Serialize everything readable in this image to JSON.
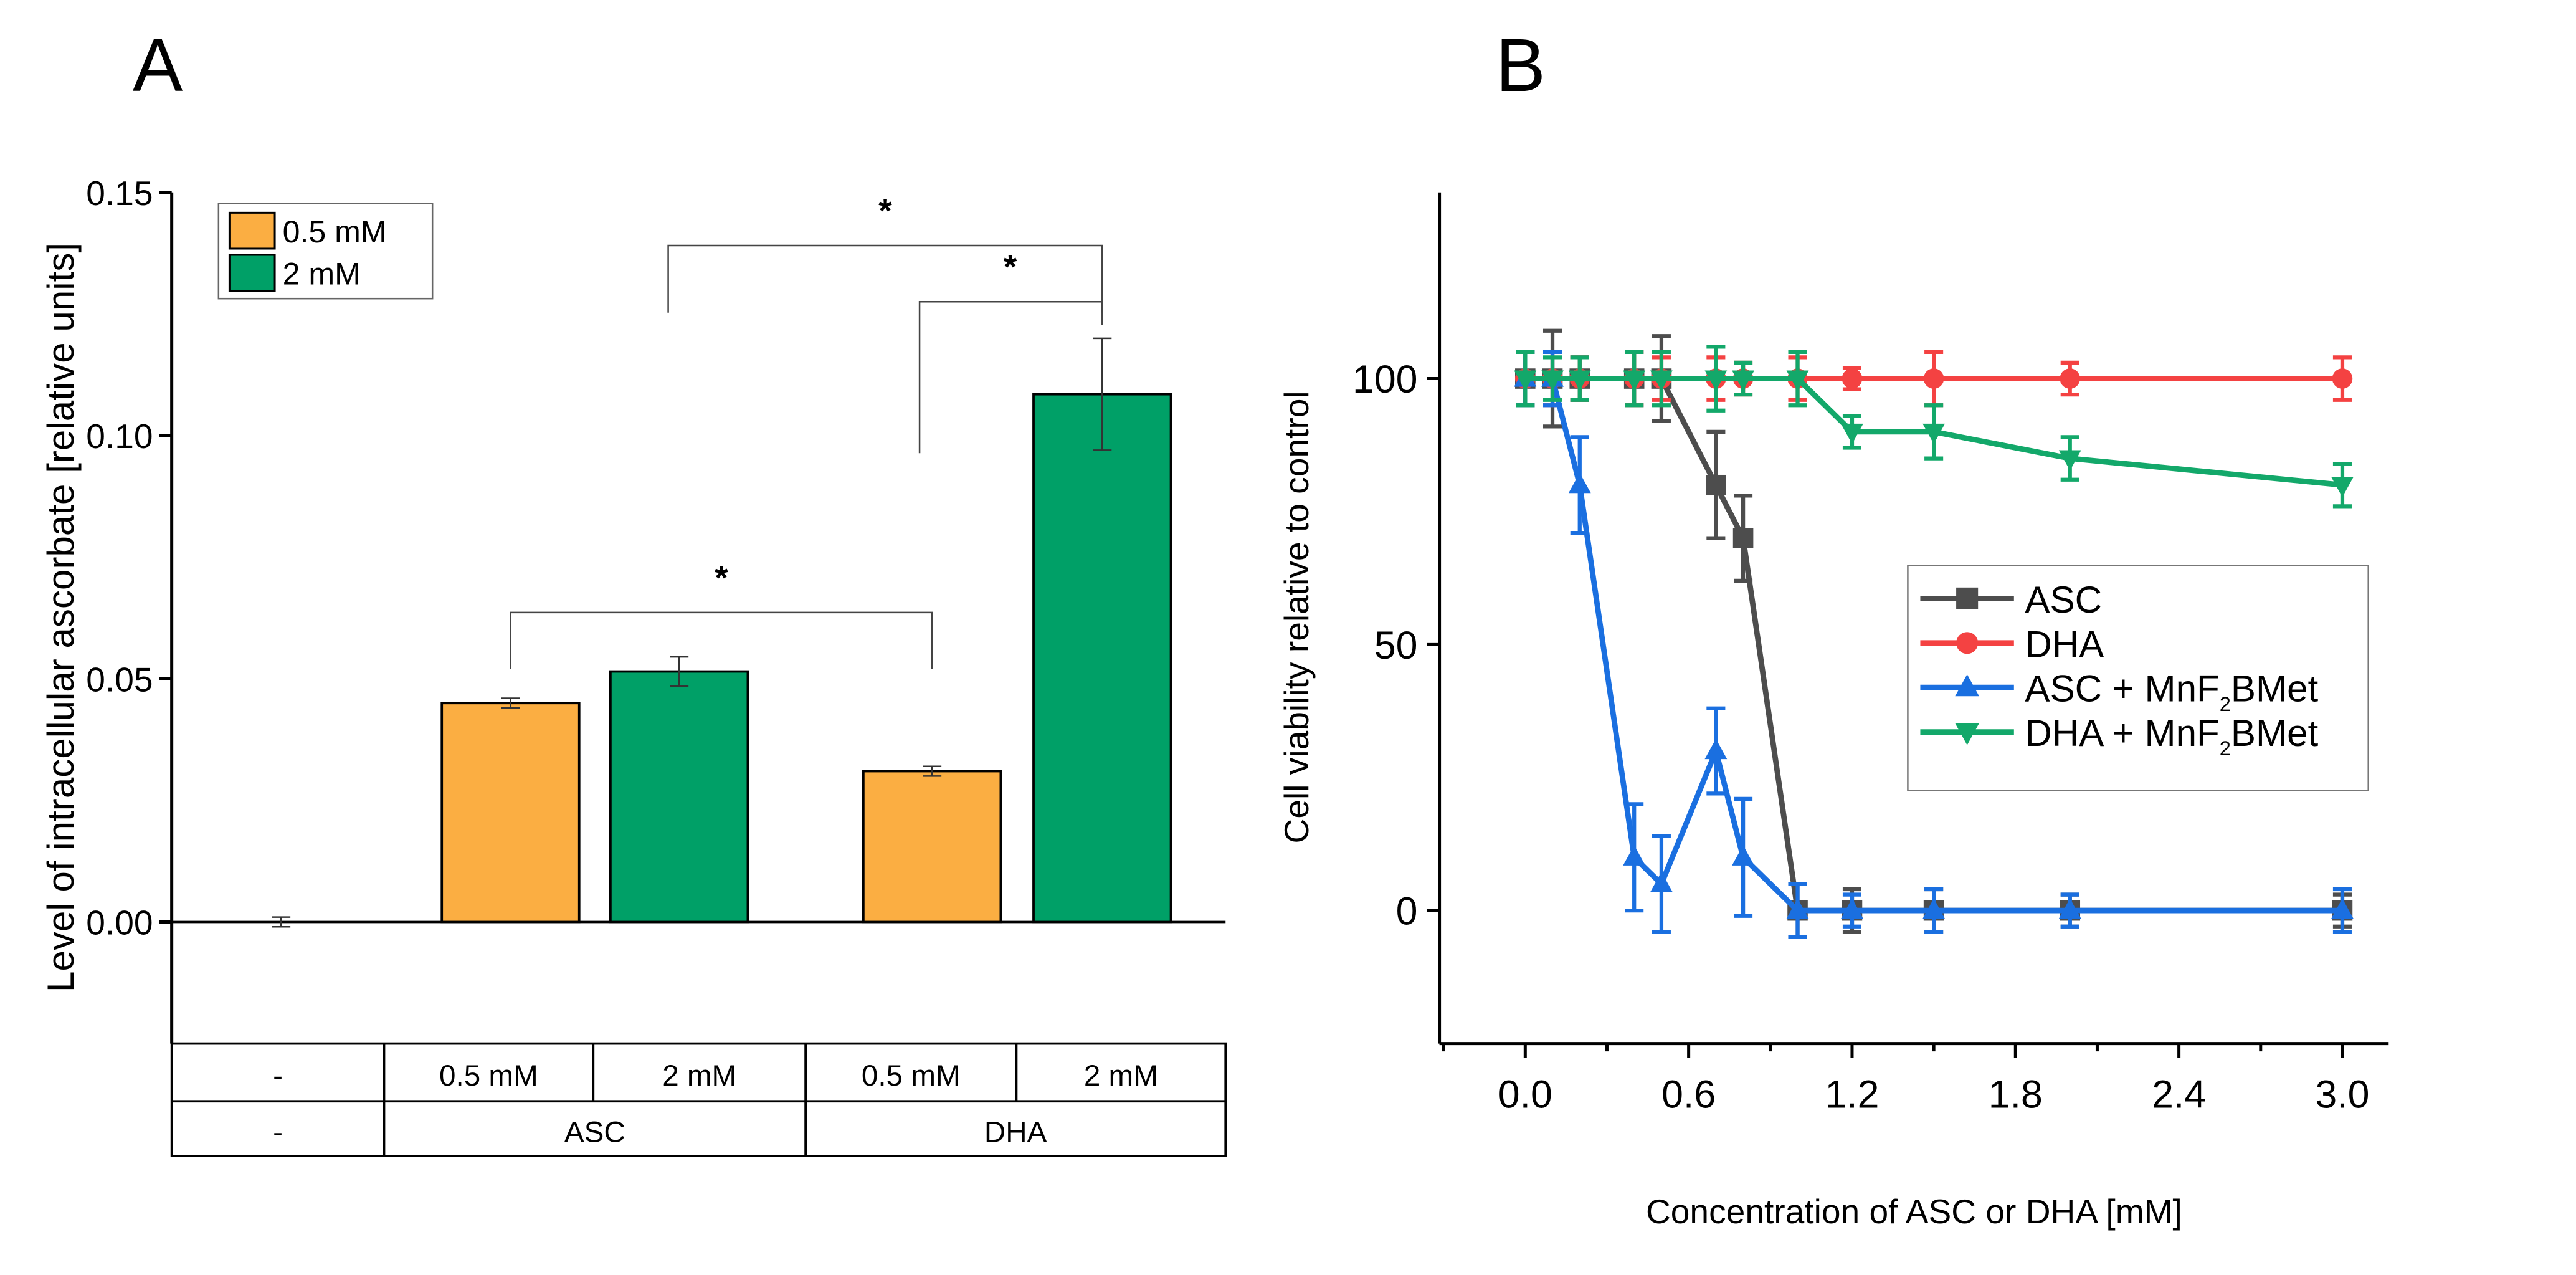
{
  "chart_data": [
    {
      "panel": "A",
      "type": "bar",
      "ylabel": "Level of intracellular ascorbate [relative units]",
      "ylim": [
        -0.025,
        0.15
      ],
      "yticks": [
        "0.00",
        "0.05",
        "0.10",
        "0.15"
      ],
      "ytick_values": [
        0,
        0.05,
        0.1,
        0.15
      ],
      "legend": [
        {
          "name": "0.5 mM",
          "color": "#FBAE42"
        },
        {
          "name": "2 mM",
          "color": "#00A067"
        }
      ],
      "bars": [
        {
          "group": "-",
          "conc": "-",
          "value": 0.0,
          "error": 0.001,
          "color": "none"
        },
        {
          "group": "ASC",
          "conc": "0.5 mM",
          "value": 0.045,
          "error": 0.001,
          "color": "#FBAE42"
        },
        {
          "group": "ASC",
          "conc": "2 mM",
          "value": 0.0515,
          "error": 0.003,
          "color": "#00A067"
        },
        {
          "group": "DHA",
          "conc": "0.5 mM",
          "value": 0.031,
          "error": 0.001,
          "color": "#FBAE42"
        },
        {
          "group": "DHA",
          "conc": "2 mM",
          "value": 0.1085,
          "error": 0.0115,
          "color": "#00A067"
        }
      ],
      "table_row1": [
        "-",
        "0.5 mM",
        "2 mM",
        "0.5 mM",
        "2 mM"
      ],
      "table_row2": [
        "-",
        "ASC",
        "DHA"
      ],
      "significance": [
        {
          "from": 1,
          "to": 3,
          "label": "*"
        },
        {
          "from": 2,
          "to": 4,
          "label": "*"
        },
        {
          "from": 3,
          "to": 4,
          "label": "*"
        }
      ]
    },
    {
      "panel": "B",
      "type": "line",
      "xlabel": "Concentration of ASC or DHA [mM]",
      "ylabel": "Cell viability relative to control",
      "xlim": [
        -0.315,
        3.17
      ],
      "ylim": [
        -25,
        135
      ],
      "xticks": [
        "0.0",
        "0.6",
        "1.2",
        "1.8",
        "2.4",
        "3.0"
      ],
      "xtick_values": [
        0,
        0.6,
        1.2,
        1.8,
        2.4,
        3.0
      ],
      "yticks": [
        "0",
        "50",
        "100"
      ],
      "ytick_values": [
        0,
        50,
        100
      ],
      "legend_position": "center-right",
      "x": [
        0,
        0.1,
        0.2,
        0.4,
        0.5,
        0.7,
        0.8,
        1.0,
        1.2,
        1.5,
        2.0,
        3.0
      ],
      "series": [
        {
          "name": "ASC",
          "sub": "",
          "color": "#4D4D4D",
          "marker": "square",
          "values": [
            100,
            100,
            100,
            100,
            100,
            80,
            70,
            0,
            0,
            0,
            0,
            0
          ],
          "errors": [
            5,
            9,
            4,
            5,
            8,
            10,
            8,
            5,
            4,
            4,
            3,
            3
          ]
        },
        {
          "name": "DHA",
          "sub": "",
          "color": "#F44242",
          "marker": "circle",
          "values": [
            100,
            100,
            100,
            100,
            100,
            100,
            100,
            100,
            100,
            100,
            100,
            100
          ],
          "errors": [
            5,
            5,
            4,
            5,
            4,
            4,
            3,
            4,
            2,
            5,
            3,
            4
          ]
        },
        {
          "name": "ASC + MnF",
          "sub": "2",
          "suffix": "BMet",
          "color": "#1A6FE0",
          "marker": "triangle-up",
          "values": [
            100,
            100,
            80,
            10,
            5,
            30,
            10,
            0,
            0,
            0,
            0,
            0
          ],
          "errors": [
            5,
            5,
            9,
            10,
            9,
            8,
            11,
            5,
            3,
            4,
            3,
            4
          ]
        },
        {
          "name": "DHA + MnF",
          "sub": "2",
          "suffix": "BMet",
          "color": "#13A86A",
          "marker": "triangle-down",
          "values": [
            100,
            100,
            100,
            100,
            100,
            100,
            100,
            100,
            90,
            90,
            85,
            80
          ],
          "errors": [
            5,
            4,
            4,
            5,
            5,
            6,
            3,
            5,
            3,
            5,
            4,
            4
          ]
        }
      ]
    }
  ],
  "panel_labels": [
    "A",
    "B"
  ]
}
